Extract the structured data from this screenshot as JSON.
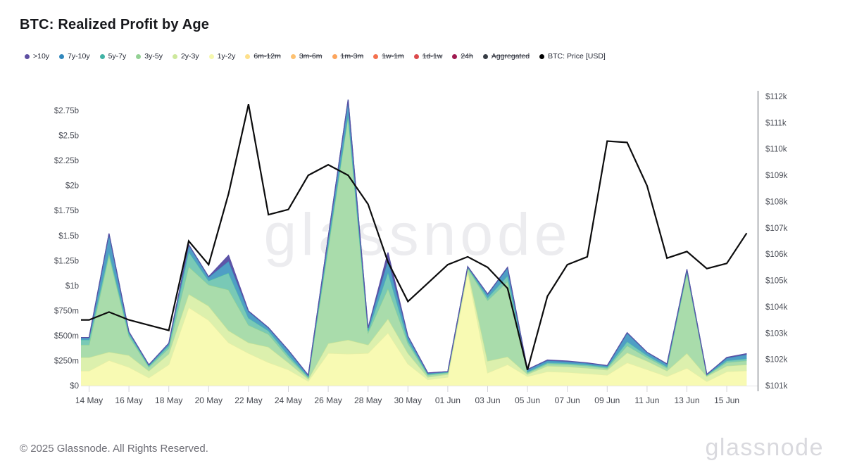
{
  "header": {
    "title": "BTC: Realized Profit by Age"
  },
  "legend": {
    "items": [
      {
        "label": ">10y",
        "color": "#5e4fa2",
        "disabled": false
      },
      {
        "label": "7y-10y",
        "color": "#3288bd",
        "disabled": false
      },
      {
        "label": "5y-7y",
        "color": "#41b3a5",
        "disabled": false
      },
      {
        "label": "3y-5y",
        "color": "#93d194",
        "disabled": false
      },
      {
        "label": "2y-3y",
        "color": "#cde89c",
        "disabled": false
      },
      {
        "label": "1y-2y",
        "color": "#f6f8ae",
        "disabled": false
      },
      {
        "label": "6m-12m",
        "color": "#fee08b",
        "disabled": true
      },
      {
        "label": "3m-6m",
        "color": "#fdc171",
        "disabled": true
      },
      {
        "label": "1m-3m",
        "color": "#fca55d",
        "disabled": true
      },
      {
        "label": "1w-1m",
        "color": "#f4714e",
        "disabled": true
      },
      {
        "label": "1d-1w",
        "color": "#dc4a4c",
        "disabled": true
      },
      {
        "label": "24h",
        "color": "#a01a50",
        "disabled": true
      },
      {
        "label": "Aggregated",
        "color": "#373d45",
        "disabled": true
      },
      {
        "label": "BTC: Price [USD]",
        "color": "#000000",
        "disabled": false
      }
    ]
  },
  "watermark": {
    "text": "glassnode"
  },
  "footer": {
    "copyright": "© 2025 Glassnode. All Rights Reserved.",
    "brand": "glassnode"
  },
  "chart_data": {
    "type": "area",
    "subtype": "stacked area (realized profit by coin age, left axis, $m) with BTC price line (right axis, $k)",
    "x_dates": [
      "14 May",
      "15 May",
      "16 May",
      "17 May",
      "18 May",
      "19 May",
      "20 May",
      "21 May",
      "22 May",
      "23 May",
      "24 May",
      "25 May",
      "26 May",
      "27 May",
      "28 May",
      "29 May",
      "30 May",
      "31 May",
      "01 Jun",
      "02 Jun",
      "03 Jun",
      "04 Jun",
      "05 Jun",
      "06 Jun",
      "07 Jun",
      "08 Jun",
      "09 Jun",
      "10 Jun",
      "11 Jun",
      "12 Jun",
      "13 Jun",
      "14 Jun",
      "15 Jun",
      "16 Jun"
    ],
    "x_tick_every": 2,
    "left_axis_ticks": [
      {
        "v": 2750,
        "label": "$2.75b"
      },
      {
        "v": 2500,
        "label": "$2.5b"
      },
      {
        "v": 2250,
        "label": "$2.25b"
      },
      {
        "v": 2000,
        "label": "$2b"
      },
      {
        "v": 1750,
        "label": "$1.75b"
      },
      {
        "v": 1500,
        "label": "$1.5b"
      },
      {
        "v": 1250,
        "label": "$1.25b"
      },
      {
        "v": 1000,
        "label": "$1b"
      },
      {
        "v": 750,
        "label": "$750m"
      },
      {
        "v": 500,
        "label": "$500m"
      },
      {
        "v": 250,
        "label": "$250m"
      },
      {
        "v": 0,
        "label": "$0"
      }
    ],
    "right_axis_ticks": [
      {
        "v": 112,
        "label": "$112k"
      },
      {
        "v": 111,
        "label": "$111k"
      },
      {
        "v": 110,
        "label": "$110k"
      },
      {
        "v": 109,
        "label": "$109k"
      },
      {
        "v": 108,
        "label": "$108k"
      },
      {
        "v": 107,
        "label": "$107k"
      },
      {
        "v": 106,
        "label": "$106k"
      },
      {
        "v": 105,
        "label": "$105k"
      },
      {
        "v": 104,
        "label": "$104k"
      },
      {
        "v": 103,
        "label": "$103k"
      },
      {
        "v": 102,
        "label": "$102k"
      },
      {
        "v": 101,
        "label": "$101k"
      }
    ],
    "series": [
      {
        "name": "1y-2y",
        "fill": "#f8fab3",
        "edge": "#e7eea4",
        "values_musd": [
          148,
          253,
          185,
          79,
          211,
          782,
          655,
          430,
          324,
          232,
          160,
          45,
          324,
          317,
          324,
          528,
          218,
          60,
          85,
          1130,
          127,
          211,
          92,
          141,
          134,
          120,
          106,
          230,
          162,
          92,
          176,
          42,
          141,
          150
        ]
      },
      {
        "name": "2y-3y",
        "fill": "#dcf0ad",
        "edge": "#c6e295",
        "values_musd": [
          134,
          84,
          118,
          69,
          106,
          133,
          141,
          120,
          106,
          155,
          70,
          20,
          98,
          141,
          84,
          141,
          106,
          25,
          28,
          30,
          119,
          78,
          21,
          56,
          56,
          56,
          50,
          100,
          84,
          56,
          148,
          50,
          56,
          60
        ]
      },
      {
        "name": "3y-5y",
        "fill": "#a9dcab",
        "edge": "#8ed094",
        "values_musd": [
          126,
          964,
          190,
          37,
          56,
          275,
          211,
          408,
          176,
          127,
          50,
          15,
          951,
          2238,
          120,
          303,
          98,
          20,
          14,
          15,
          606,
          753,
          14,
          21,
          21,
          21,
          18,
          70,
          36,
          28,
          803,
          10,
          35,
          40
        ]
      },
      {
        "name": "5y-7y",
        "fill": "#79c9b6",
        "edge": "#4fbcab",
        "values_musd": [
          50,
          35,
          27,
          12,
          28,
          148,
          42,
          169,
          70,
          35,
          25,
          8,
          35,
          15,
          21,
          162,
          29,
          8,
          7,
          8,
          28,
          56,
          10,
          11,
          11,
          11,
          10,
          40,
          21,
          14,
          14,
          4,
          18,
          20
        ]
      },
      {
        "name": "7y-10y",
        "fill": "#4f9ec5",
        "edge": "#3a8fbe",
        "values_musd": [
          21,
          183,
          17,
          10,
          21,
          71,
          35,
          116,
          63,
          28,
          45,
          15,
          77,
          148,
          28,
          120,
          42,
          12,
          7,
          7,
          35,
          78,
          25,
          21,
          18,
          15,
          14,
          85,
          28,
          25,
          21,
          7,
          25,
          40
        ]
      },
      {
        "name": ">10y",
        "fill": "#5e55a8",
        "edge": "#5a51a5",
        "values_musd": [
          2,
          2,
          2,
          2,
          2,
          0,
          5,
          60,
          7,
          3,
          5,
          2,
          0,
          0,
          0,
          77,
          3,
          2,
          0,
          0,
          0,
          7,
          0,
          7,
          6,
          5,
          3,
          5,
          3,
          3,
          0,
          0,
          7,
          10
        ]
      }
    ],
    "price_line": {
      "name": "BTC: Price [USD]",
      "color": "#0c0c0d",
      "values_usd_thousands": [
        103.5,
        103.8,
        103.5,
        103.3,
        103.1,
        106.5,
        105.6,
        108.3,
        111.7,
        107.5,
        107.7,
        109.0,
        109.4,
        109.0,
        107.9,
        105.7,
        104.2,
        104.9,
        105.6,
        105.9,
        105.5,
        104.7,
        101.6,
        104.4,
        105.6,
        105.9,
        110.3,
        110.25,
        108.6,
        105.85,
        106.1,
        105.45,
        105.65,
        106.8
      ]
    },
    "axis_ranges": {
      "left_musd": [
        0,
        2750
      ],
      "right_usd_k": [
        101,
        112
      ]
    },
    "grid": "none (white plot, bottom tick marks only)",
    "legend_position": "top"
  }
}
